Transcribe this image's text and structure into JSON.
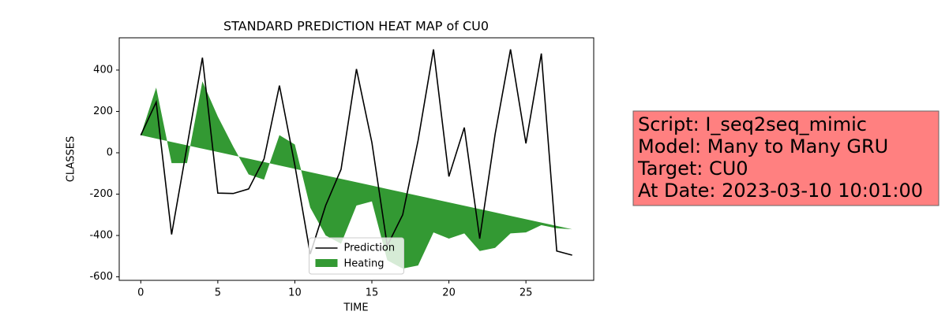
{
  "chart_data": {
    "type": "line",
    "title": "STANDARD PREDICTION HEAT MAP of CU0",
    "x_label": "TIME",
    "y_label": "CLASSES",
    "x": [
      0,
      1,
      2,
      3,
      4,
      5,
      6,
      7,
      8,
      9,
      10,
      11,
      12,
      13,
      14,
      15,
      16,
      17,
      18,
      19,
      20,
      21,
      22,
      23,
      24,
      25,
      26,
      27,
      28
    ],
    "series": [
      {
        "name": "Prediction",
        "color": "#000000",
        "values": [
          85,
          245,
          -395,
          30,
          460,
          -195,
          -197,
          -175,
          -30,
          325,
          -60,
          -490,
          -255,
          -80,
          405,
          50,
          -450,
          -300,
          60,
          500,
          -115,
          122,
          -415,
          90,
          500,
          45,
          480,
          -475,
          -495
        ]
      },
      {
        "name": "Heating",
        "color": "#339933",
        "values": [
          85,
          315,
          -50,
          -50,
          345,
          175,
          30,
          -105,
          -130,
          85,
          40,
          -265,
          -400,
          -440,
          -255,
          -235,
          -520,
          -560,
          -545,
          -385,
          -415,
          -390,
          -475,
          -460,
          -390,
          -385,
          -350,
          -365,
          -370
        ],
        "baseline": [
          85,
          68.75,
          52.5,
          36.25,
          20,
          3.75,
          -12.5,
          -28.75,
          -45,
          -61.25,
          -77.5,
          -93.75,
          -110,
          -126.25,
          -142.5,
          -158.75,
          -175,
          -191.25,
          -207.5,
          -223.75,
          -240,
          -256.25,
          -272.5,
          -288.75,
          -305,
          -321.25,
          -337.5,
          -353.75,
          -370
        ]
      }
    ],
    "xlim": [
      -1.4,
      29.4
    ],
    "xticks": [
      0,
      5,
      10,
      15,
      20,
      25
    ],
    "ylim": [
      -617,
      556
    ],
    "yticks": [
      -600,
      -400,
      -200,
      0,
      200,
      400
    ],
    "legend": "lower center",
    "annotation": [
      "Script: I_seq2seq_mimic",
      "Model: Many to Many GRU",
      "Target: CU0",
      "At Date: 2023-03-10 10:01:00"
    ],
    "annotation_color": "#ff8080"
  }
}
